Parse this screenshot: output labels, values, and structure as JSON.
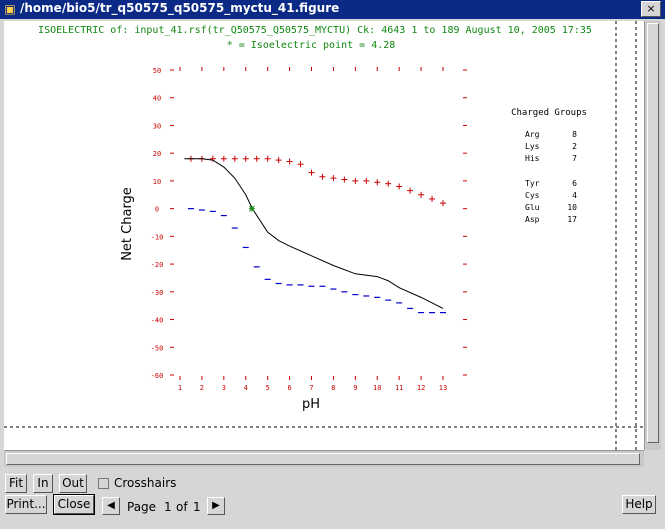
{
  "window": {
    "title": "/home/bio5/tr_q50575_q50575_myctu_41.figure",
    "close_glyph": "×"
  },
  "figure": {
    "header_line1": "ISOELECTRIC of: input_41.rsf(tr_Q50575_Q50575_MYCTU)  Ck: 4643  1 to 189  August 10, 2005 17:35",
    "header_line2": "* = Isoelectric point = 4.28",
    "legend_title": "Charged Groups",
    "groups": [
      {
        "name": "Arg",
        "count": "8"
      },
      {
        "name": "Lys",
        "count": "2"
      },
      {
        "name": "His",
        "count": "7"
      },
      {
        "name": "Tyr",
        "count": "6"
      },
      {
        "name": "Cys",
        "count": "4"
      },
      {
        "name": "Glu",
        "count": "10"
      },
      {
        "name": "Asp",
        "count": "17"
      }
    ]
  },
  "chart_data": {
    "type": "scatter",
    "xlabel": "pH",
    "ylabel": "Net Charge",
    "x_ticks": [
      1,
      2,
      3,
      4,
      5,
      6,
      7,
      8,
      9,
      10,
      11,
      12,
      13
    ],
    "y_ticks": [
      50,
      40,
      30,
      20,
      10,
      0,
      -10,
      -20,
      -30,
      -40,
      -50,
      -60
    ],
    "xlim": [
      1,
      13
    ],
    "ylim": [
      -60,
      50
    ],
    "isoelectric_point": {
      "x": 4.28,
      "y": 0,
      "marker": "*"
    },
    "series": [
      {
        "marker": "+",
        "color": "#cc0000",
        "x": [
          1.5,
          2,
          2.5,
          3,
          3.5,
          4,
          4.5,
          5,
          5.5,
          6,
          6.5,
          7,
          7.5,
          8,
          8.5,
          9,
          9.5,
          10,
          10.5,
          11,
          11.5,
          12,
          12.5,
          13
        ],
        "y": [
          18,
          18,
          18,
          18,
          18,
          18,
          18,
          18,
          17.5,
          17,
          16,
          13,
          11.5,
          11,
          10.5,
          10,
          10,
          9.5,
          9,
          8,
          6.5,
          5,
          3.5,
          2
        ]
      },
      {
        "marker": "-",
        "color": "#0000cc",
        "x": [
          1.5,
          2,
          2.5,
          3,
          3.5,
          4,
          4.5,
          5,
          5.5,
          6,
          6.5,
          7,
          7.5,
          8,
          8.5,
          9,
          9.5,
          10,
          10.5,
          11,
          11.5,
          12,
          12.5,
          13
        ],
        "y": [
          0,
          -0.5,
          -1,
          -2.5,
          -7,
          -14,
          -21,
          -25.5,
          -27,
          -27.5,
          -27.5,
          -28,
          -28,
          -29,
          -30,
          -31,
          -31.5,
          -32,
          -33,
          -34,
          -36,
          -37.5,
          -37.5,
          -37.5
        ]
      },
      {
        "marker": "line",
        "color": "#000000",
        "x": [
          1.2,
          2,
          2.5,
          3,
          3.5,
          4,
          4.3,
          5,
          5.5,
          6,
          7,
          8,
          9,
          10,
          10.5,
          11,
          12,
          13
        ],
        "y": [
          18,
          18,
          17.5,
          15,
          11,
          5,
          0,
          -8.5,
          -11.5,
          -13.5,
          -17,
          -20.5,
          -23.5,
          -24.5,
          -26,
          -28.5,
          -32,
          -36
        ]
      }
    ]
  },
  "controls": {
    "fit": "Fit",
    "zoom_in": "In",
    "zoom_out": "Out",
    "crosshairs": "Crosshairs",
    "print": "Print...",
    "close": "Close",
    "prev_glyph": "◀",
    "next_glyph": "▶",
    "page_label": "Page",
    "page_current": "1",
    "page_of": "of",
    "page_total": "1",
    "help": "Help"
  }
}
